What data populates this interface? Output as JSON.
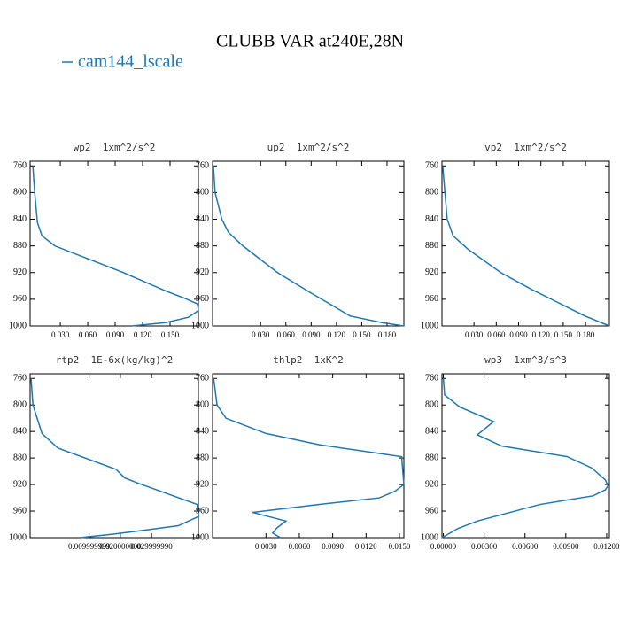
{
  "title": "CLUBB VAR at240E,28N",
  "legend": {
    "name": "cam144_lscale",
    "color": "#1f77b4"
  },
  "chart_data": [
    {
      "type": "line",
      "title": "wp2  1xm^2/s^2",
      "color": "#1f77b4",
      "x": [
        0.0,
        0.002,
        0.005,
        0.01,
        0.024,
        0.099,
        0.146,
        0.165,
        0.18,
        0.181,
        0.17,
        0.145,
        0.108
      ],
      "values": [
        760,
        800,
        845,
        865,
        880,
        920,
        948,
        958,
        967,
        977,
        987,
        995,
        1000
      ],
      "xlim": [
        -0.003,
        0.181
      ],
      "ylim": [
        1000,
        753
      ],
      "xticks": [
        {
          "value": 0.03,
          "label": "0.030"
        },
        {
          "value": 0.06,
          "label": "0.060"
        },
        {
          "value": 0.09,
          "label": "0.090"
        },
        {
          "value": 0.12,
          "label": "0.120"
        },
        {
          "value": 0.15,
          "label": "0.150"
        }
      ],
      "yticks": [
        760,
        800,
        840,
        880,
        920,
        960,
        1000
      ]
    },
    {
      "type": "line",
      "title": "up2  1xm^2/s^2",
      "color": "#1f77b4",
      "x": [
        -0.026,
        -0.024,
        -0.016,
        -0.008,
        0.009,
        0.05,
        0.089,
        0.116,
        0.136,
        0.174,
        0.2
      ],
      "values": [
        760,
        800,
        840,
        860,
        880,
        920,
        950,
        970,
        985,
        995,
        1000
      ],
      "xlim": [
        -0.027,
        0.2
      ],
      "ylim": [
        1000,
        753
      ],
      "xticks": [
        {
          "value": 0.03,
          "label": "0.030"
        },
        {
          "value": 0.06,
          "label": "0.060"
        },
        {
          "value": 0.09,
          "label": "0.090"
        },
        {
          "value": 0.12,
          "label": "0.120"
        },
        {
          "value": 0.15,
          "label": "0.150"
        },
        {
          "value": 0.18,
          "label": "0.180"
        }
      ],
      "yticks": [
        760,
        800,
        840,
        880,
        920,
        960,
        1000
      ]
    },
    {
      "type": "line",
      "title": "vp2  1xm^2/s^2",
      "color": "#1f77b4",
      "x": [
        -0.012,
        -0.009,
        -0.006,
        0.002,
        0.022,
        0.066,
        0.107,
        0.143,
        0.179,
        0.212
      ],
      "values": [
        760,
        800,
        840,
        865,
        885,
        920,
        945,
        965,
        985,
        1000
      ],
      "xlim": [
        -0.013,
        0.212
      ],
      "ylim": [
        1000,
        753
      ],
      "xticks": [
        {
          "value": 0.03,
          "label": "0.030"
        },
        {
          "value": 0.06,
          "label": "0.060"
        },
        {
          "value": 0.09,
          "label": "0.090"
        },
        {
          "value": 0.12,
          "label": "0.120"
        },
        {
          "value": 0.15,
          "label": "0.150"
        },
        {
          "value": 0.18,
          "label": "0.180"
        }
      ],
      "yticks": [
        760,
        800,
        840,
        880,
        920,
        960,
        1000
      ]
    },
    {
      "type": "line",
      "title": "rtp2  1E-6x(kg/kg)^2",
      "color": "#1f77b4",
      "x": [
        -0.0086,
        -0.008,
        -0.0051,
        0.0,
        0.0186,
        0.0214,
        0.0257,
        0.0446,
        0.0451,
        0.0386,
        0.0257,
        0.0171,
        0.0071
      ],
      "values": [
        760,
        800,
        843,
        865,
        897,
        910,
        918,
        950,
        968,
        982,
        990,
        995,
        1000
      ],
      "xlim": [
        -0.0089,
        0.045
      ],
      "ylim": [
        1000,
        753
      ],
      "xticks": [
        {
          "value": 0.009999999,
          "label": "0.009999999"
        },
        {
          "value": 0.02,
          "label": "0.020000000"
        },
        {
          "value": 0.02999999,
          "label": "0.029999990"
        }
      ],
      "yticks": [
        760,
        800,
        840,
        880,
        920,
        960,
        1000
      ]
    },
    {
      "type": "line",
      "title": "thlp2  1xK^2",
      "color": "#1f77b4",
      "x": [
        -0.0017,
        -0.0014,
        -0.0006,
        0.003,
        0.0078,
        0.0152,
        0.0154,
        0.0146,
        0.0132,
        0.0078,
        0.0018,
        0.0048,
        0.004,
        0.0036,
        0.0043
      ],
      "values": [
        760,
        800,
        820,
        843,
        860,
        878,
        920,
        930,
        940,
        950,
        962,
        975,
        985,
        993,
        1000
      ],
      "xlim": [
        -0.0018,
        0.0154
      ],
      "ylim": [
        1000,
        753
      ],
      "xticks": [
        {
          "value": 0.003,
          "label": "0.0030"
        },
        {
          "value": 0.006,
          "label": "0.0060"
        },
        {
          "value": 0.009,
          "label": "0.0090"
        },
        {
          "value": 0.012,
          "label": "0.0120"
        },
        {
          "value": 0.015,
          "label": "0.0150"
        }
      ],
      "yticks": [
        760,
        800,
        840,
        880,
        920,
        960,
        1000
      ]
    },
    {
      "type": "line",
      "title": "wp3  1xm^3/s^3",
      "color": "#1f77b4",
      "x": [
        0.0,
        0.0001,
        0.0012,
        0.0037,
        0.0025,
        0.0043,
        0.0091,
        0.0109,
        0.0119,
        0.0121,
        0.0119,
        0.011,
        0.0071,
        0.0025,
        0.0011,
        -0.0001
      ],
      "values": [
        760,
        785,
        803,
        825,
        845,
        862,
        878,
        895,
        913,
        922,
        928,
        937,
        950,
        975,
        986,
        1000
      ],
      "xlim": [
        -0.0001,
        0.0122
      ],
      "ylim": [
        1000,
        753
      ],
      "xticks": [
        {
          "value": 0,
          "label": "0.00000"
        },
        {
          "value": 0.003,
          "label": "0.00300"
        },
        {
          "value": 0.006,
          "label": "0.00600"
        },
        {
          "value": 0.009,
          "label": "0.00900"
        },
        {
          "value": 0.012,
          "label": "0.01200"
        }
      ],
      "yticks": [
        760,
        800,
        840,
        880,
        920,
        960,
        1000
      ]
    }
  ]
}
